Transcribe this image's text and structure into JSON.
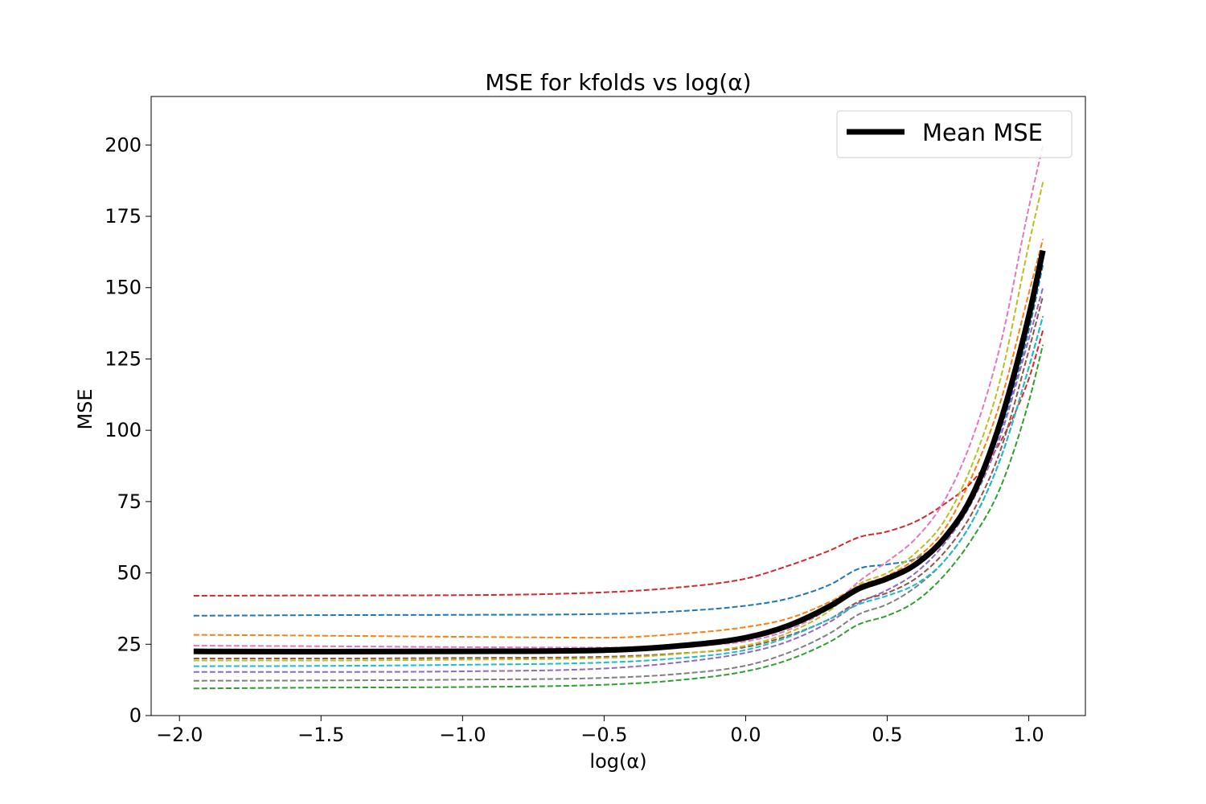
{
  "chart_data": {
    "type": "line",
    "title": "MSE for kfolds vs log(α)",
    "xlabel": "log(α)",
    "ylabel": "MSE",
    "xlim": [
      -2.1,
      1.2
    ],
    "ylim": [
      0,
      217
    ],
    "xticks": [
      -2.0,
      -1.5,
      -1.0,
      -0.5,
      0.0,
      0.5,
      1.0
    ],
    "xtick_labels": [
      "−2.0",
      "−1.5",
      "−1.0",
      "−0.5",
      "0.0",
      "0.5",
      "1.0"
    ],
    "yticks": [
      0,
      25,
      50,
      75,
      100,
      125,
      150,
      175,
      200
    ],
    "ytick_labels": [
      "0",
      "25",
      "50",
      "75",
      "100",
      "125",
      "150",
      "175",
      "200"
    ],
    "grid": false,
    "legend": {
      "position": "top-right",
      "entries": [
        "Mean MSE"
      ]
    },
    "x": [
      -1.95,
      -1.5,
      -1.0,
      -0.5,
      -0.25,
      0.0,
      0.15,
      0.3,
      0.4,
      0.5,
      0.6,
      0.7,
      0.8,
      0.9,
      1.0,
      1.05
    ],
    "series": [
      {
        "color": "#1f77b4",
        "dashed": true,
        "values": [
          35,
          35.2,
          35.3,
          35.6,
          36.5,
          38.5,
          41,
          46,
          51.5,
          53,
          55,
          62,
          77,
          100,
          135,
          158
        ]
      },
      {
        "color": "#ff7f0e",
        "dashed": true,
        "values": [
          28.3,
          28,
          27.6,
          27.3,
          28.5,
          31,
          34,
          40,
          45.5,
          49,
          55,
          65,
          84,
          110,
          148,
          167
        ]
      },
      {
        "color": "#2ca02c",
        "dashed": true,
        "values": [
          9.5,
          9.8,
          10,
          10.8,
          12.3,
          15.5,
          19.5,
          26,
          32,
          35,
          40,
          49,
          62,
          80,
          110,
          130
        ]
      },
      {
        "color": "#d62728",
        "dashed": true,
        "values": [
          42,
          42.1,
          42.2,
          43.2,
          44.8,
          48,
          52.5,
          58,
          62.5,
          64.5,
          68,
          74,
          82,
          96,
          118,
          135
        ]
      },
      {
        "color": "#9467bd",
        "dashed": true,
        "values": [
          15.3,
          15.3,
          15.5,
          16.5,
          18.5,
          22,
          26,
          33,
          39.5,
          44,
          50,
          60,
          75,
          98,
          132,
          150
        ]
      },
      {
        "color": "#8c564b",
        "dashed": true,
        "values": [
          20,
          20,
          20.2,
          20.6,
          21.7,
          24,
          28,
          34,
          40,
          43,
          48,
          57,
          71,
          93,
          128,
          147
        ]
      },
      {
        "color": "#e377c2",
        "dashed": true,
        "values": [
          24.5,
          24.3,
          24,
          23.8,
          24.5,
          26,
          30,
          38,
          47,
          54,
          62,
          75,
          97,
          130,
          178,
          200
        ]
      },
      {
        "color": "#7f7f7f",
        "dashed": true,
        "values": [
          12.2,
          12.3,
          12.6,
          13.2,
          14.5,
          17.5,
          22,
          29,
          35.5,
          39,
          45,
          54,
          68,
          90,
          122,
          140
        ]
      },
      {
        "color": "#bcbd22",
        "dashed": true,
        "values": [
          19.3,
          19.3,
          19.6,
          20.2,
          21.5,
          24.5,
          29,
          37,
          46,
          50,
          57,
          68,
          88,
          118,
          165,
          187
        ]
      },
      {
        "color": "#17becf",
        "dashed": true,
        "values": [
          17.3,
          17.4,
          17.8,
          18.6,
          20,
          23,
          27.5,
          34,
          39,
          42,
          46,
          54,
          68,
          90,
          122,
          140
        ]
      },
      {
        "name": "Mean MSE",
        "color": "#000000",
        "dashed": false,
        "values": [
          22.5,
          22.4,
          22.5,
          22.9,
          24.3,
          27.3,
          31.5,
          38.5,
          44.5,
          48,
          53,
          62,
          77,
          103,
          140,
          163
        ]
      }
    ]
  }
}
